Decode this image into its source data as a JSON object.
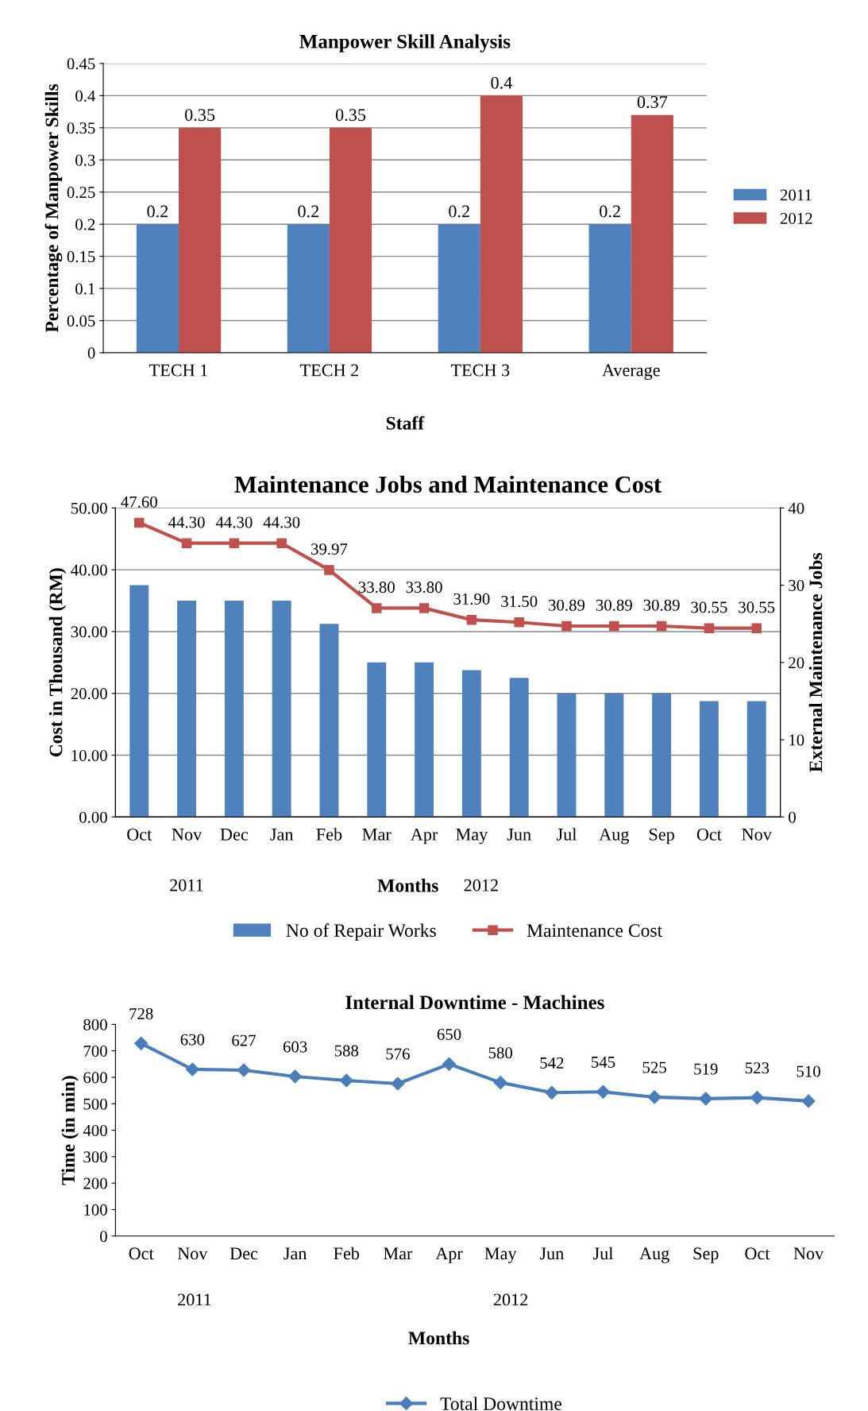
{
  "chart_data": [
    {
      "type": "bar",
      "title": "Manpower Skill Analysis",
      "xlabel": "Staff",
      "ylabel": "Percentage of Manpower Skills",
      "categories": [
        "TECH 1",
        "TECH 2",
        "TECH 3",
        "Average"
      ],
      "series": [
        {
          "name": "2011",
          "color": "#4f81bd",
          "values": [
            0.2,
            0.2,
            0.2,
            0.2
          ]
        },
        {
          "name": "2012",
          "color": "#c0504d",
          "values": [
            0.35,
            0.35,
            0.4,
            0.37
          ]
        }
      ],
      "ylim": [
        0,
        0.45
      ],
      "yticks": [
        0,
        0.05,
        0.1,
        0.15,
        0.2,
        0.25,
        0.3,
        0.35,
        0.4,
        0.45
      ],
      "grid": "y",
      "legend": "right",
      "data_labels": true
    },
    {
      "type": "bar",
      "title": "Maintenance Jobs and Maintenance Cost",
      "ylabel": "Cost in Thousand (RM)",
      "y2label": "External Maintenance Jobs",
      "xlabel": "Months",
      "categories": [
        "Oct",
        "Nov",
        "Dec",
        "Jan",
        "Feb",
        "Mar",
        "Apr",
        "May",
        "Jun",
        "Jul",
        "Aug",
        "Sep",
        "Oct",
        "Nov"
      ],
      "series": [
        {
          "name": "No of Repair Works",
          "type": "bar",
          "axis": "y2",
          "color": "#4f81bd",
          "values": [
            30,
            28,
            28,
            28,
            25,
            20,
            20,
            19,
            18,
            16,
            16,
            16,
            15,
            15
          ]
        },
        {
          "name": "Maintenance Cost",
          "type": "line",
          "color": "#c0504d",
          "marker": "square",
          "values": [
            47.6,
            44.3,
            44.3,
            44.3,
            39.97,
            33.8,
            33.8,
            31.9,
            31.5,
            30.89,
            30.89,
            30.89,
            30.55,
            30.55
          ],
          "value_labels": [
            "47.60",
            "44.30",
            "44.30",
            "44.30",
            "39.97",
            "33.80",
            "33.80",
            "31.90",
            "31.50",
            "30.89",
            "30.89",
            "30.89",
            "30.55",
            "30.55"
          ]
        }
      ],
      "ylim": [
        0,
        50
      ],
      "yticks": [
        {
          "value": 0,
          "label": "0.00"
        },
        {
          "value": 10,
          "label": "10.00"
        },
        {
          "value": 20,
          "label": "20.00"
        },
        {
          "value": 30,
          "label": "30.00"
        },
        {
          "value": 40,
          "label": "40.00"
        },
        {
          "value": 50,
          "label": "50.00"
        }
      ],
      "y2lim": [
        0,
        40
      ],
      "y2ticks": [
        0,
        10,
        20,
        30,
        40
      ],
      "grid": "y",
      "legend": "bottom",
      "annotations": [
        "2011",
        "2012"
      ]
    },
    {
      "type": "line",
      "title": "Internal Downtime - Machines",
      "ylabel": "Time (in min)",
      "xlabel": "Months",
      "categories": [
        "Oct",
        "Nov",
        "Dec",
        "Jan",
        "Feb",
        "Mar",
        "Apr",
        "May",
        "Jun",
        "Jul",
        "Aug",
        "Sep",
        "Oct",
        "Nov"
      ],
      "series": [
        {
          "name": "Total Downtime",
          "color": "#4a7ebb",
          "values": [
            728,
            630,
            627,
            603,
            588,
            576,
            650,
            580,
            542,
            545,
            525,
            519,
            523,
            510
          ]
        }
      ],
      "marker": "diamond",
      "ylim": [
        0,
        800
      ],
      "yticks": [
        0,
        100,
        200,
        300,
        400,
        500,
        600,
        700,
        800
      ],
      "legend": "bottom",
      "data_labels": true,
      "annotations": [
        "2011",
        "2012"
      ]
    }
  ]
}
